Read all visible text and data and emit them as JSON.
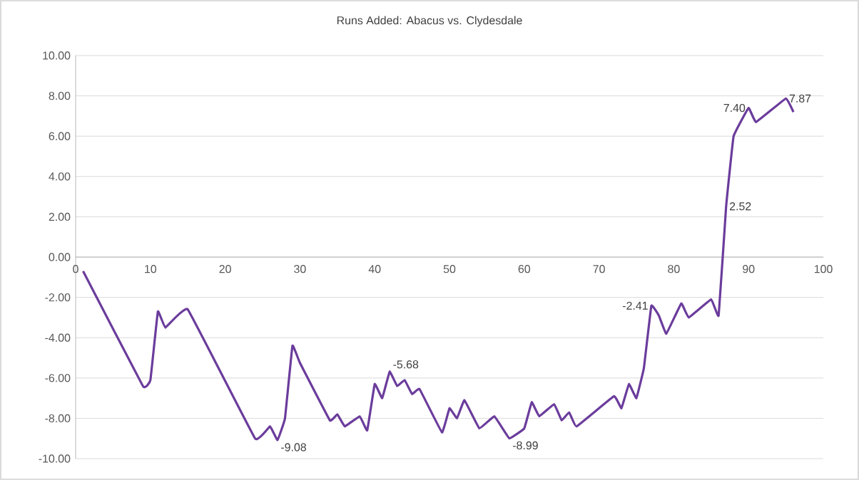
{
  "chart_data": {
    "type": "line",
    "title": "Runs Added: Abacus vs. Clydesdale",
    "x": [
      1,
      9,
      10,
      11,
      12,
      15,
      24,
      26,
      27,
      28,
      29,
      30,
      34,
      35,
      36,
      38,
      39,
      40,
      41,
      42,
      43,
      44,
      45,
      46,
      49,
      50,
      51,
      52,
      54,
      56,
      58,
      60,
      61,
      62,
      64,
      65,
      66,
      67,
      72,
      73,
      74,
      75,
      76,
      77,
      78,
      79,
      81,
      82,
      85,
      86,
      87,
      88,
      90,
      91,
      95,
      96
    ],
    "series": [
      {
        "color": "#6b3c9c",
        "values": [
          -0.7,
          -6.4,
          -6.1,
          -2.7,
          -3.5,
          -2.6,
          -9.0,
          -8.4,
          -9.08,
          -8.0,
          -4.4,
          -5.25,
          -8.1,
          -7.8,
          -8.4,
          -7.9,
          -8.6,
          -6.3,
          -7.0,
          -5.68,
          -6.4,
          -6.1,
          -6.8,
          -6.55,
          -8.7,
          -7.5,
          -8.0,
          -7.1,
          -8.5,
          -7.9,
          -8.99,
          -8.5,
          -7.2,
          -7.9,
          -7.3,
          -8.1,
          -7.7,
          -8.4,
          -6.9,
          -7.5,
          -6.3,
          -7.0,
          -5.5,
          -2.41,
          -2.9,
          -3.8,
          -2.3,
          -3.0,
          -2.1,
          -2.9,
          2.52,
          6.0,
          7.4,
          6.7,
          7.87,
          7.2
        ]
      }
    ],
    "xlim": [
      0,
      100
    ],
    "xticks": [
      0,
      10,
      20,
      30,
      40,
      50,
      60,
      70,
      80,
      90,
      100
    ],
    "ylim": [
      -10,
      10
    ],
    "yticks": [
      {
        "value": -10,
        "label": "-10.00"
      },
      {
        "value": -8,
        "label": "-8.00"
      },
      {
        "value": -6,
        "label": "-6.00"
      },
      {
        "value": -4,
        "label": "-4.00"
      },
      {
        "value": -2,
        "label": "-2.00"
      },
      {
        "value": 0,
        "label": "0.00"
      },
      {
        "value": 2,
        "label": "2.00"
      },
      {
        "value": 4,
        "label": "4.00"
      },
      {
        "value": 6,
        "label": "6.00"
      },
      {
        "value": 8,
        "label": "8.00"
      },
      {
        "value": 10,
        "label": "10.00"
      }
    ],
    "grid": "y",
    "marker": "none",
    "line_style": "solid",
    "annotations": [
      {
        "text": "-9.08",
        "x": 27,
        "y": -9.08
      },
      {
        "text": "-5.68",
        "x": 42,
        "y": -5.68
      },
      {
        "text": "-8.99",
        "x": 58,
        "y": -8.99
      },
      {
        "text": "-2.41",
        "x": 77,
        "y": -2.41
      },
      {
        "text": "7.40",
        "x": 90,
        "y": 7.4
      },
      {
        "text": "2.52",
        "x": 87,
        "y": 2.52
      },
      {
        "text": "7.87",
        "x": 95,
        "y": 7.87
      }
    ]
  }
}
